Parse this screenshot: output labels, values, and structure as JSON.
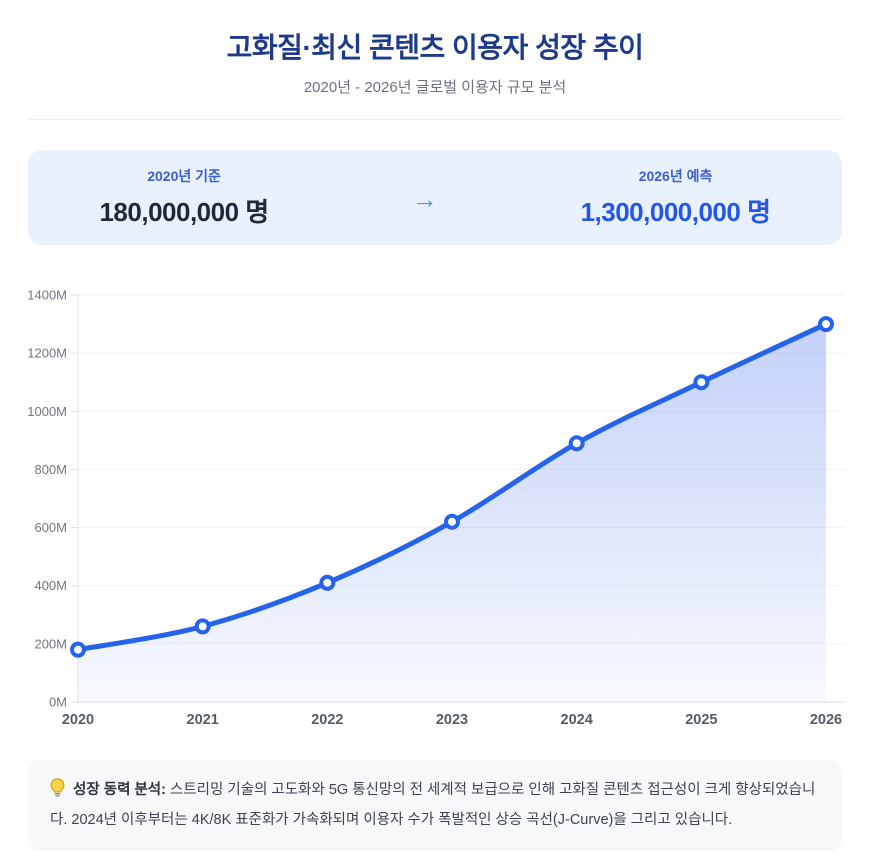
{
  "header": {
    "title": "고화질·최신 콘텐츠 이용자 성장 추이",
    "subtitle": "2020년 - 2026년 글로벌 이용자 규모 분석"
  },
  "summary": {
    "start": {
      "label": "2020년 기준",
      "value": "180,000,000 명"
    },
    "arrow_glyph": "→",
    "end": {
      "label": "2026년 예측",
      "value": "1,300,000,000 명"
    }
  },
  "chart_data": {
    "type": "area",
    "x_categories": [
      "2020",
      "2021",
      "2022",
      "2023",
      "2024",
      "2025",
      "2026"
    ],
    "values": [
      180,
      260,
      410,
      620,
      890,
      1100,
      1300
    ],
    "unit": "M",
    "ylim": [
      0,
      1400
    ],
    "y_tick_step": 200,
    "y_tick_labels": [
      "0M",
      "200M",
      "400M",
      "600M",
      "800M",
      "1000M",
      "1200M",
      "1400M"
    ],
    "grid": true,
    "legend": false,
    "smooth": true,
    "line_color": "#2563eb",
    "marker_fill": "#ffffff",
    "area_top_color": "rgba(76,116,235,0.33)",
    "area_bottom_color": "rgba(76,116,235,0.04)"
  },
  "insight": {
    "icon": "lightbulb",
    "title_label": "성장 동력 분석:",
    "body": "스트리밍 기술의 고도화와 5G 통신망의 전 세계적 보급으로 인해 고화질 콘텐츠 접근성이 크게 향상되었습니다. 2024년 이후부터는 4K/8K 표준화가 가속화되며 이용자 수가 폭발적인 상승 곡선(J-Curve)을 그리고 있습니다."
  },
  "colors": {
    "title": "#1e3a8a",
    "accent_blue": "#2563eb",
    "banner_bg": "#e9f1fd",
    "insight_bg": "#f7f8f9",
    "bulb_yellow": "#f6c244"
  }
}
